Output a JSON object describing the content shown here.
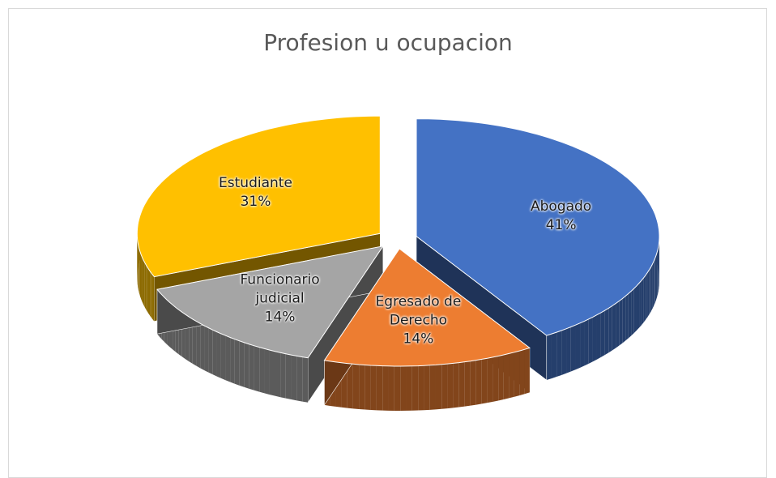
{
  "chart_data": {
    "type": "pie3d",
    "title": "Profesion u ocupacion",
    "categories": [
      "Abogado",
      "Egresado de Derecho",
      "Funcionario judicial",
      "Estudiante"
    ],
    "values": [
      41,
      14,
      14,
      31
    ],
    "value_labels": [
      "41%",
      "14%",
      "14%",
      "31%"
    ],
    "colors": [
      "#4472c4",
      "#ed7d31",
      "#a5a5a5",
      "#ffc000"
    ]
  }
}
